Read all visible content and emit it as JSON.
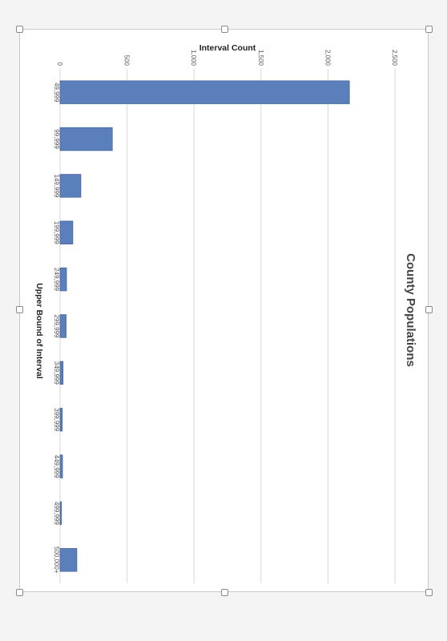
{
  "chart_data": {
    "type": "bar",
    "title": "County Populations",
    "xlabel": "Upper Bound of Interval",
    "ylabel": "Interval Count",
    "categories": [
      "49,999",
      "99,999",
      "149,999",
      "199,999",
      "249,999",
      "299,999",
      "349,999",
      "399,999",
      "449,999",
      "499,999",
      "500,000+"
    ],
    "values": [
      2160,
      390,
      155,
      95,
      48,
      45,
      22,
      16,
      18,
      10,
      125
    ],
    "ylim": [
      0,
      2500
    ],
    "yticks": [
      "0",
      "500",
      "1,000",
      "1,500",
      "2,000",
      "2,500"
    ],
    "ytick_values": [
      0,
      500,
      1000,
      1500,
      2000,
      2500
    ],
    "grid": true,
    "bar_color": "#5b7fba",
    "bar_edge_color": "#44659d",
    "orientation": "rotated 90° clockwise"
  }
}
